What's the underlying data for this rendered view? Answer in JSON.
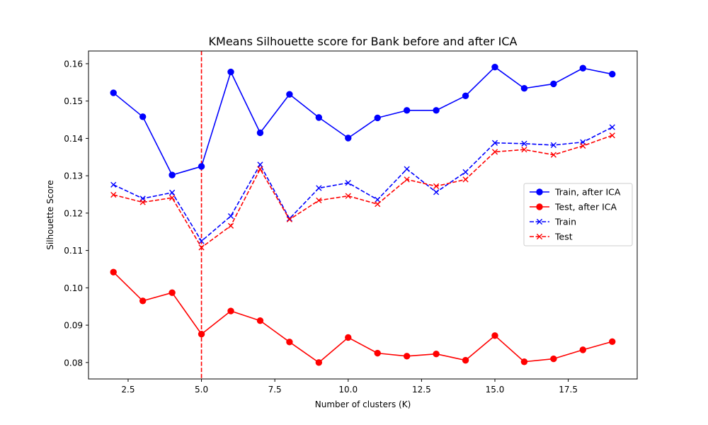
{
  "chart_data": {
    "type": "line",
    "title": "KMeans Silhouette score for Bank before and after ICA",
    "xlabel": "Number of clusters (K)",
    "ylabel": "Silhouette Score",
    "xlim": [
      1.15,
      19.85
    ],
    "ylim": [
      0.0756,
      0.1634
    ],
    "x_ticks": [
      2.5,
      5.0,
      7.5,
      10.0,
      12.5,
      15.0,
      17.5
    ],
    "x_tick_labels": [
      "2.5",
      "5.0",
      "7.5",
      "10.0",
      "12.5",
      "15.0",
      "17.5"
    ],
    "y_ticks": [
      0.08,
      0.09,
      0.1,
      0.11,
      0.12,
      0.13,
      0.14,
      0.15,
      0.16
    ],
    "y_tick_labels": [
      "0.08",
      "0.09",
      "0.10",
      "0.11",
      "0.12",
      "0.13",
      "0.14",
      "0.15",
      "0.16"
    ],
    "grid": false,
    "legend_position": "center-right",
    "x": [
      2,
      3,
      4,
      5,
      6,
      7,
      8,
      9,
      10,
      11,
      12,
      13,
      14,
      15,
      16,
      17,
      18,
      19
    ],
    "vline": {
      "x": 5,
      "color": "#ff0000",
      "style": "dashed"
    },
    "series": [
      {
        "name": "Train, after ICA",
        "color": "#0000ff",
        "line_style": "solid",
        "marker": "circle",
        "values": [
          0.1522,
          0.1458,
          0.1302,
          0.1325,
          0.1578,
          0.1415,
          0.1518,
          0.1456,
          0.1401,
          0.1455,
          0.1475,
          0.1475,
          0.1514,
          0.1591,
          0.1534,
          0.1546,
          0.1588,
          0.1572
        ]
      },
      {
        "name": "Test, after ICA",
        "color": "#ff0000",
        "line_style": "solid",
        "marker": "circle",
        "values": [
          0.1042,
          0.0965,
          0.0987,
          0.0876,
          0.0938,
          0.0912,
          0.0855,
          0.08,
          0.0867,
          0.0825,
          0.0817,
          0.0823,
          0.0806,
          0.0872,
          0.0802,
          0.081,
          0.0834,
          0.0856
        ]
      },
      {
        "name": "Train",
        "color": "#0000ff",
        "line_style": "dashed",
        "marker": "x",
        "values": [
          0.1276,
          0.1239,
          0.1255,
          0.1125,
          0.1192,
          0.133,
          0.1185,
          0.1267,
          0.1281,
          0.1236,
          0.1318,
          0.1256,
          0.131,
          0.1388,
          0.1386,
          0.1382,
          0.139,
          0.143
        ]
      },
      {
        "name": "Test",
        "color": "#ff0000",
        "line_style": "dashed",
        "marker": "x",
        "values": [
          0.1249,
          0.1229,
          0.1241,
          0.1108,
          0.1166,
          0.1318,
          0.1183,
          0.1234,
          0.1246,
          0.1224,
          0.129,
          0.1272,
          0.129,
          0.1364,
          0.137,
          0.1356,
          0.138,
          0.1408
        ]
      }
    ]
  }
}
